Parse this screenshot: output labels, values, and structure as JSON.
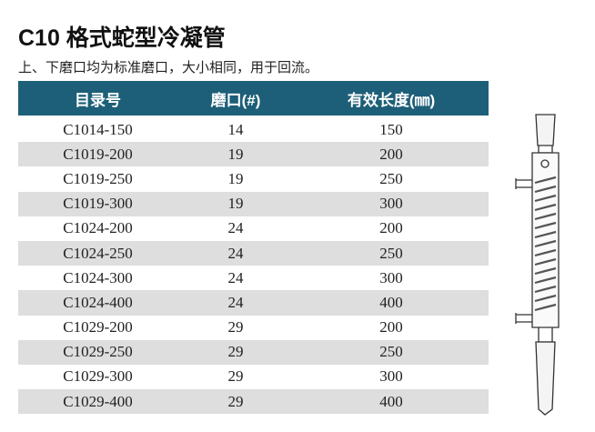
{
  "header": {
    "title": "C10 格式蛇型冷凝管",
    "subtitle": "上、下磨口均为标准磨口，大小相同，用于回流。"
  },
  "table": {
    "columns": [
      "目录号",
      "磨口(#)",
      "有效长度(㎜)"
    ],
    "rows": [
      [
        "C1014-150",
        14,
        150
      ],
      [
        "C1019-200",
        19,
        200
      ],
      [
        "C1019-250",
        19,
        250
      ],
      [
        "C1019-300",
        19,
        300
      ],
      [
        "C1024-200",
        24,
        200
      ],
      [
        "C1024-250",
        24,
        250
      ],
      [
        "C1024-300",
        24,
        300
      ],
      [
        "C1024-400",
        24,
        400
      ],
      [
        "C1029-200",
        29,
        200
      ],
      [
        "C1029-250",
        29,
        250
      ],
      [
        "C1029-300",
        29,
        300
      ],
      [
        "C1029-400",
        29,
        400
      ]
    ]
  }
}
